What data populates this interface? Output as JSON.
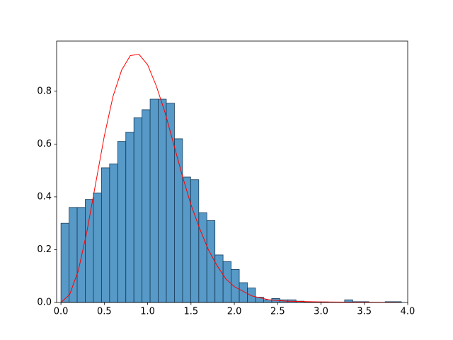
{
  "chart_data": [
    {
      "type": "histogram",
      "bins": [
        0,
        0.0935,
        0.187,
        0.2805,
        0.374,
        0.4675,
        0.561,
        0.6545,
        0.748,
        0.8415,
        0.935,
        1.0285,
        1.122,
        1.2155,
        1.309,
        1.4025,
        1.496,
        1.5895,
        1.683,
        1.7765,
        1.87,
        1.9635,
        2.057,
        2.1505,
        2.244,
        2.3375,
        2.431,
        2.5245,
        2.618,
        2.7115,
        2.805,
        2.8985,
        2.992,
        3.0855,
        3.179,
        3.2725,
        3.366,
        3.4595,
        3.553,
        3.6465,
        3.74,
        3.8335,
        3.927
      ],
      "values": [
        0.3,
        0.36,
        0.36,
        0.39,
        0.415,
        0.51,
        0.525,
        0.61,
        0.645,
        0.7,
        0.73,
        0.77,
        0.77,
        0.755,
        0.62,
        0.475,
        0.465,
        0.34,
        0.31,
        0.18,
        0.155,
        0.125,
        0.075,
        0.055,
        0.02,
        0.01,
        0.015,
        0.01,
        0.01,
        0.005,
        0.002,
        0.002,
        0.002,
        0,
        0,
        0.01,
        0.003,
        0.003,
        0,
        0,
        0.003,
        0.003
      ],
      "color": "#1f77b4",
      "xlim": [
        -0.05,
        4.0
      ],
      "ylim": [
        0,
        0.99
      ],
      "xticks": [
        {
          "value": 0,
          "label": "0.0"
        },
        {
          "value": 0.5,
          "label": "0.5"
        },
        {
          "value": 1,
          "label": "1.0"
        },
        {
          "value": 1.5,
          "label": "1.5"
        },
        {
          "value": 2,
          "label": "2.0"
        },
        {
          "value": 2.5,
          "label": "2.5"
        },
        {
          "value": 3,
          "label": "3.0"
        },
        {
          "value": 3.5,
          "label": "3.5"
        },
        {
          "value": 4,
          "label": "4.0"
        }
      ],
      "yticks": [
        {
          "value": 0,
          "label": "0.0"
        },
        {
          "value": 0.2,
          "label": "0.2"
        },
        {
          "value": 0.4,
          "label": "0.4"
        },
        {
          "value": 0.6,
          "label": "0.6"
        },
        {
          "value": 0.8,
          "label": "0.8"
        }
      ]
    },
    {
      "type": "line",
      "color": "#ff0000",
      "x": [
        0,
        0.1,
        0.2,
        0.3,
        0.4,
        0.5,
        0.6,
        0.7,
        0.8,
        0.9,
        1.0,
        1.1,
        1.2,
        1.3,
        1.4,
        1.5,
        1.6,
        1.7,
        1.8,
        1.9,
        2.0,
        2.2,
        2.4,
        2.6,
        3.0,
        3.5,
        3.9
      ],
      "values": [
        0,
        0.03,
        0.12,
        0.27,
        0.45,
        0.63,
        0.78,
        0.88,
        0.935,
        0.94,
        0.9,
        0.82,
        0.72,
        0.6,
        0.48,
        0.37,
        0.28,
        0.2,
        0.14,
        0.09,
        0.06,
        0.025,
        0.01,
        0.005,
        0.002,
        0.001,
        0
      ]
    }
  ]
}
